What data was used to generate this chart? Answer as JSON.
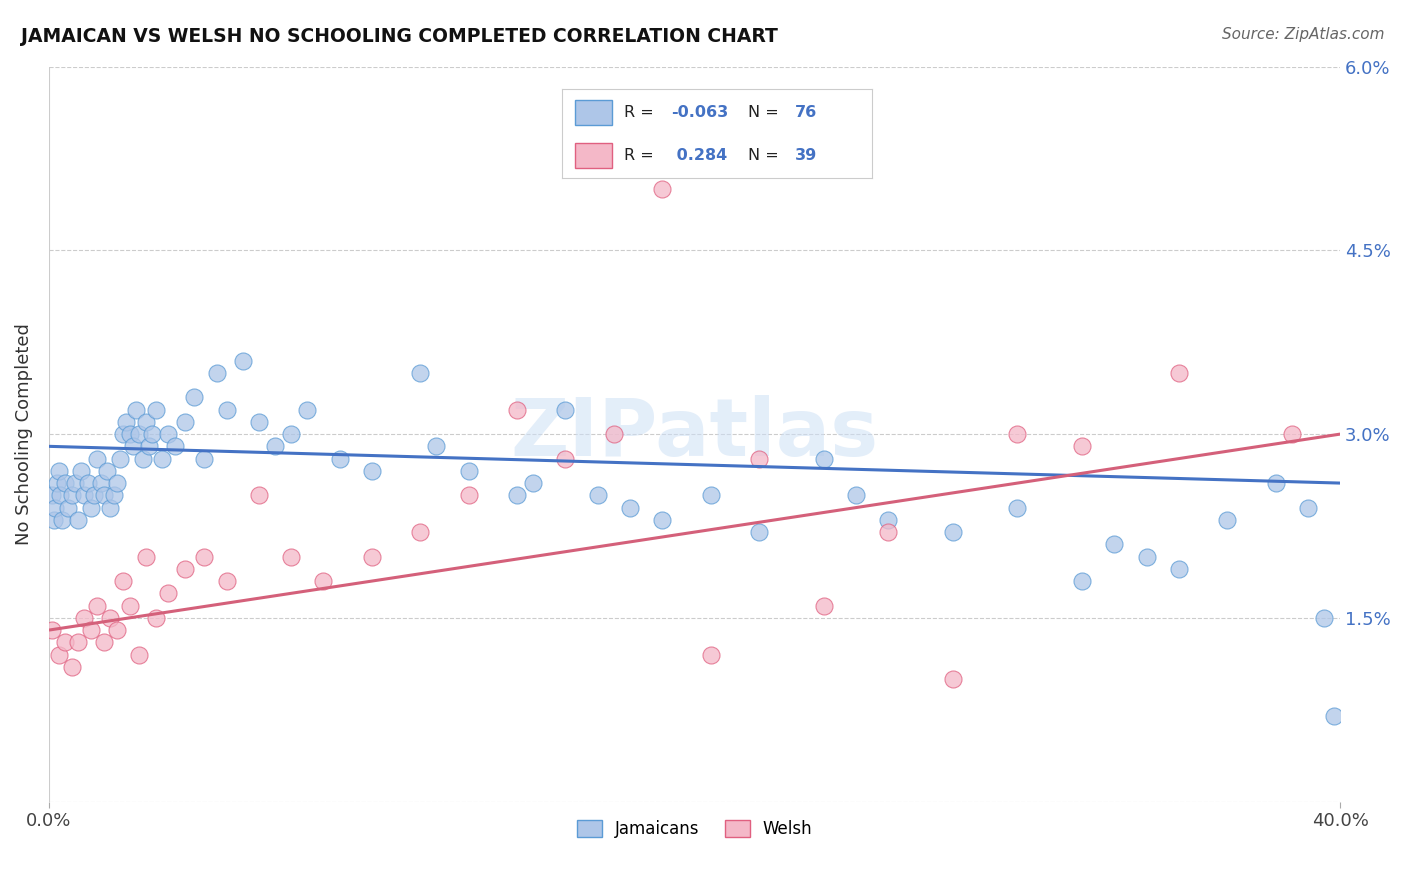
{
  "title": "JAMAICAN VS WELSH NO SCHOOLING COMPLETED CORRELATION CHART",
  "source": "Source: ZipAtlas.com",
  "ylabel": "No Schooling Completed",
  "xmin": 0.0,
  "xmax": 40.0,
  "ymin": 0.0,
  "ymax": 6.0,
  "ytick_vals": [
    0.0,
    1.5,
    3.0,
    4.5,
    6.0
  ],
  "ytick_labels": [
    "",
    "1.5%",
    "3.0%",
    "4.5%",
    "6.0%"
  ],
  "jamaicans_color": "#aec6e8",
  "jamaicans_edge": "#5b9bd5",
  "welsh_color": "#f4b8c8",
  "welsh_edge": "#e06080",
  "trend_blue": "#4472c4",
  "trend_pink": "#d4607a",
  "watermark": "ZIPatlas",
  "r_jam": -0.063,
  "n_jam": 76,
  "r_welsh": 0.284,
  "n_welsh": 39,
  "jam_trend_y0": 2.9,
  "jam_trend_y1": 2.6,
  "welsh_trend_y0": 1.4,
  "welsh_trend_y1": 3.0,
  "jam_x": [
    0.1,
    0.15,
    0.2,
    0.25,
    0.3,
    0.35,
    0.4,
    0.5,
    0.6,
    0.7,
    0.8,
    0.9,
    1.0,
    1.1,
    1.2,
    1.3,
    1.4,
    1.5,
    1.6,
    1.7,
    1.8,
    1.9,
    2.0,
    2.1,
    2.2,
    2.3,
    2.4,
    2.5,
    2.6,
    2.7,
    2.8,
    2.9,
    3.0,
    3.1,
    3.2,
    3.3,
    3.5,
    3.7,
    3.9,
    4.2,
    4.5,
    4.8,
    5.2,
    5.5,
    6.0,
    6.5,
    7.0,
    7.5,
    8.0,
    9.0,
    10.0,
    11.5,
    12.0,
    13.0,
    14.5,
    15.0,
    16.0,
    17.0,
    18.0,
    19.0,
    20.5,
    22.0,
    24.0,
    25.0,
    26.0,
    28.0,
    30.0,
    32.0,
    33.0,
    34.0,
    35.0,
    36.5,
    38.0,
    39.0,
    39.5,
    39.8
  ],
  "jam_y": [
    2.5,
    2.3,
    2.4,
    2.6,
    2.7,
    2.5,
    2.3,
    2.6,
    2.4,
    2.5,
    2.6,
    2.3,
    2.7,
    2.5,
    2.6,
    2.4,
    2.5,
    2.8,
    2.6,
    2.5,
    2.7,
    2.4,
    2.5,
    2.6,
    2.8,
    3.0,
    3.1,
    3.0,
    2.9,
    3.2,
    3.0,
    2.8,
    3.1,
    2.9,
    3.0,
    3.2,
    2.8,
    3.0,
    2.9,
    3.1,
    3.3,
    2.8,
    3.5,
    3.2,
    3.6,
    3.1,
    2.9,
    3.0,
    3.2,
    2.8,
    2.7,
    3.5,
    2.9,
    2.7,
    2.5,
    2.6,
    3.2,
    2.5,
    2.4,
    2.3,
    2.5,
    2.2,
    2.8,
    2.5,
    2.3,
    2.2,
    2.4,
    1.8,
    2.1,
    2.0,
    1.9,
    2.3,
    2.6,
    2.4,
    1.5,
    0.7
  ],
  "welsh_x": [
    0.1,
    0.3,
    0.5,
    0.7,
    0.9,
    1.1,
    1.3,
    1.5,
    1.7,
    1.9,
    2.1,
    2.3,
    2.5,
    2.8,
    3.0,
    3.3,
    3.7,
    4.2,
    4.8,
    5.5,
    6.5,
    7.5,
    8.5,
    10.0,
    11.5,
    13.0,
    14.5,
    16.0,
    17.5,
    19.0,
    20.5,
    22.0,
    24.0,
    26.0,
    28.0,
    30.0,
    32.0,
    35.0,
    38.5
  ],
  "welsh_y": [
    1.4,
    1.2,
    1.3,
    1.1,
    1.3,
    1.5,
    1.4,
    1.6,
    1.3,
    1.5,
    1.4,
    1.8,
    1.6,
    1.2,
    2.0,
    1.5,
    1.7,
    1.9,
    2.0,
    1.8,
    2.5,
    2.0,
    1.8,
    2.0,
    2.2,
    2.5,
    3.2,
    2.8,
    3.0,
    5.0,
    1.2,
    2.8,
    1.6,
    2.2,
    1.0,
    3.0,
    2.9,
    3.5,
    3.0
  ]
}
